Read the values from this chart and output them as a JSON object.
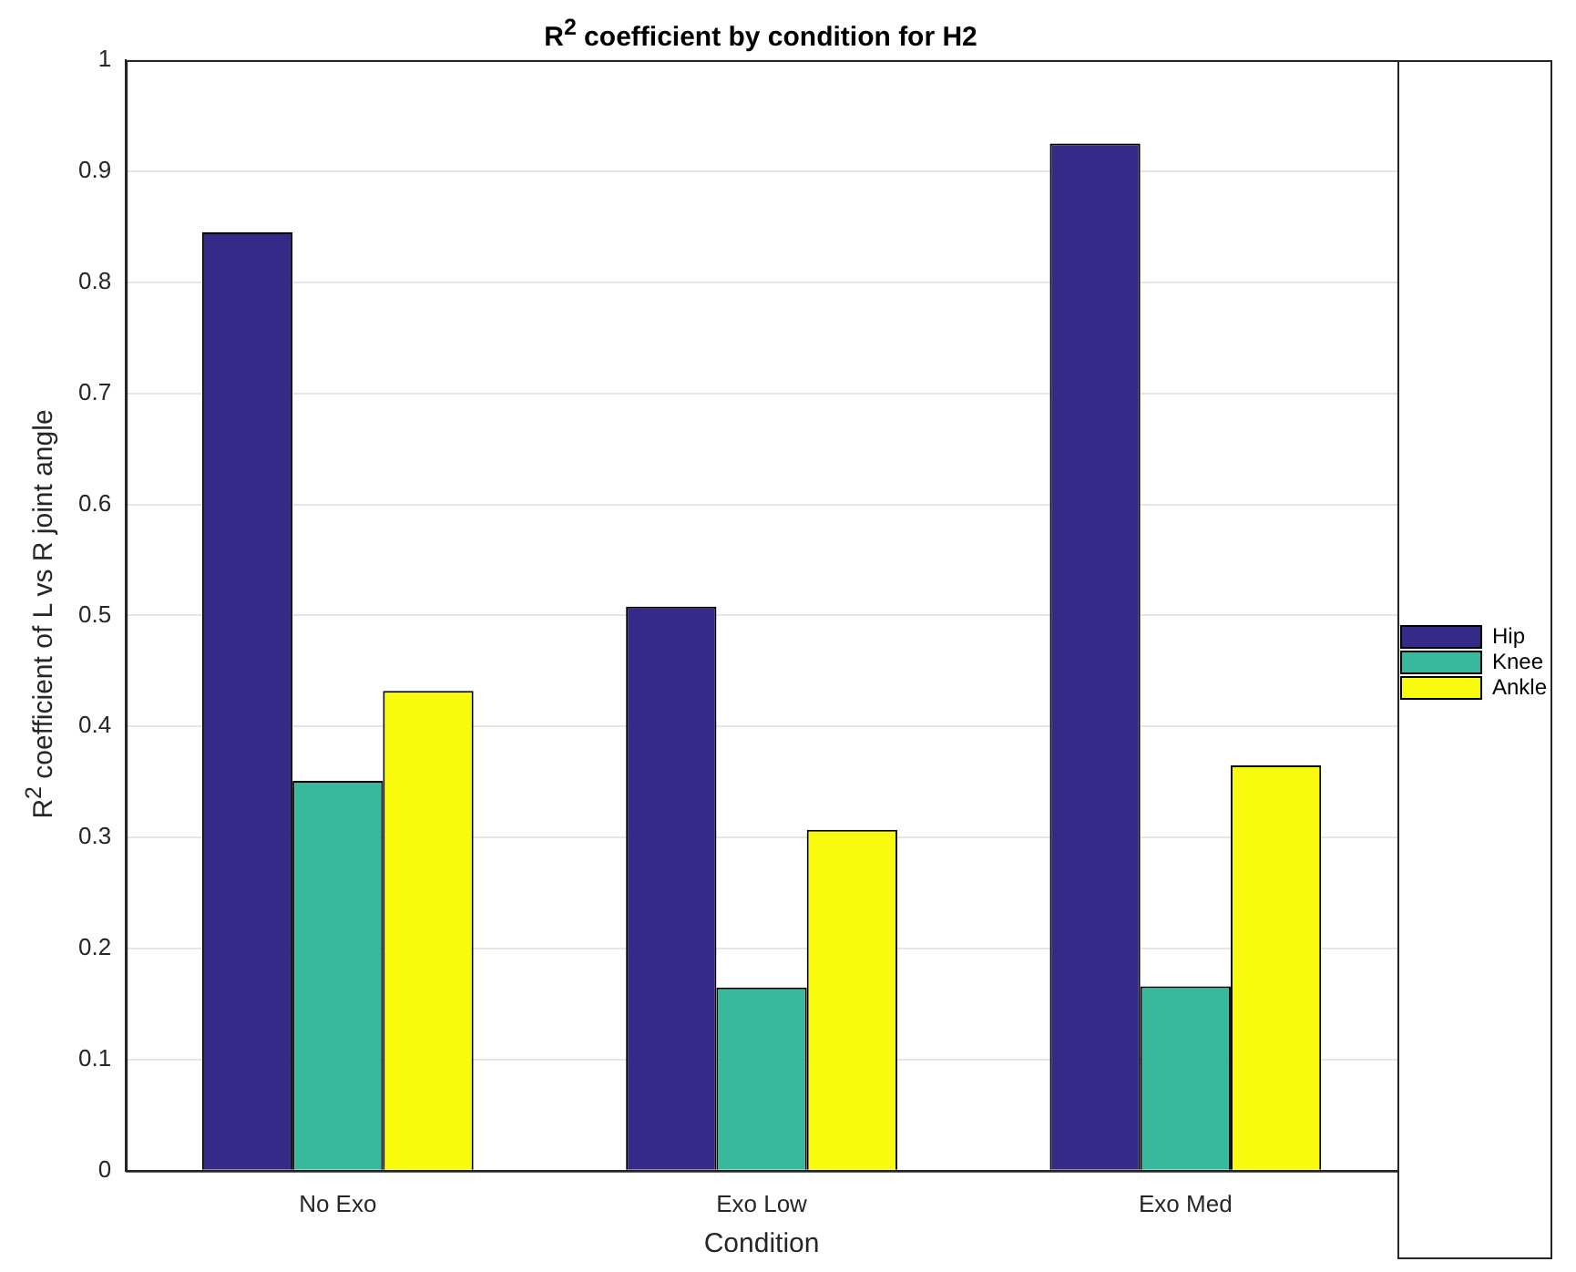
{
  "chart_data": {
    "type": "bar",
    "title": "R$^{2}$ coefficient by condition for H2",
    "xlabel": "Condition",
    "ylabel": "R$^{2}$ coefficient of L vs R joint angle",
    "categories": [
      "No Exo",
      "Exo Low",
      "Exo Med"
    ],
    "series": [
      {
        "name": "Hip",
        "color": "#352a87",
        "values": [
          0.845,
          0.508,
          0.925
        ]
      },
      {
        "name": "Knee",
        "color": "#38b99e",
        "values": [
          0.351,
          0.165,
          0.166
        ]
      },
      {
        "name": "Ankle",
        "color": "#f9fb0e",
        "values": [
          0.432,
          0.307,
          0.365
        ]
      }
    ],
    "ylim": [
      0,
      1
    ],
    "yticks": [
      0,
      0.1,
      0.2,
      0.3,
      0.4,
      0.5,
      0.6,
      0.7,
      0.8,
      0.9,
      1
    ],
    "grid": "y",
    "legend": "right"
  }
}
